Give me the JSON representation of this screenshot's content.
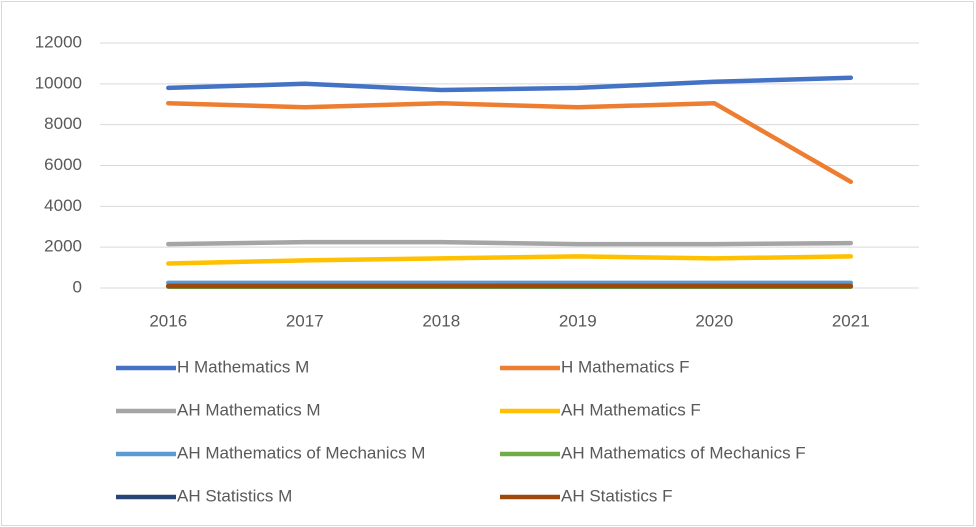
{
  "chart_data": {
    "type": "line",
    "categories": [
      "2016",
      "2017",
      "2018",
      "2019",
      "2020",
      "2021"
    ],
    "series": [
      {
        "name": "H Mathematics M",
        "color": "#4472c4",
        "values": [
          9800,
          10000,
          9700,
          9800,
          10100,
          10300
        ]
      },
      {
        "name": "H Mathematics F",
        "color": "#ed7d31",
        "values": [
          9050,
          8850,
          9050,
          8850,
          9050,
          5200
        ]
      },
      {
        "name": "AH Mathematics M",
        "color": "#a5a5a5",
        "values": [
          2150,
          2250,
          2250,
          2150,
          2150,
          2200
        ]
      },
      {
        "name": "AH Mathematics F",
        "color": "#ffc000",
        "values": [
          1200,
          1350,
          1450,
          1550,
          1450,
          1550
        ]
      },
      {
        "name": "AH Mathematics of Mechanics M",
        "color": "#5b9bd5",
        "values": [
          250,
          250,
          250,
          250,
          250,
          250
        ]
      },
      {
        "name": "AH Mathematics of Mechanics F",
        "color": "#70ad47",
        "values": [
          60,
          60,
          60,
          60,
          60,
          60
        ]
      },
      {
        "name": "AH Statistics M",
        "color": "#264478",
        "values": [
          100,
          100,
          100,
          100,
          100,
          100
        ]
      },
      {
        "name": "AH Statistics F",
        "color": "#9e480e",
        "values": [
          100,
          100,
          100,
          110,
          100,
          100
        ]
      }
    ],
    "ylim": [
      0,
      12000
    ],
    "yticks": [
      0,
      2000,
      4000,
      6000,
      8000,
      10000,
      12000
    ],
    "grid": true,
    "legend": "bottom"
  }
}
